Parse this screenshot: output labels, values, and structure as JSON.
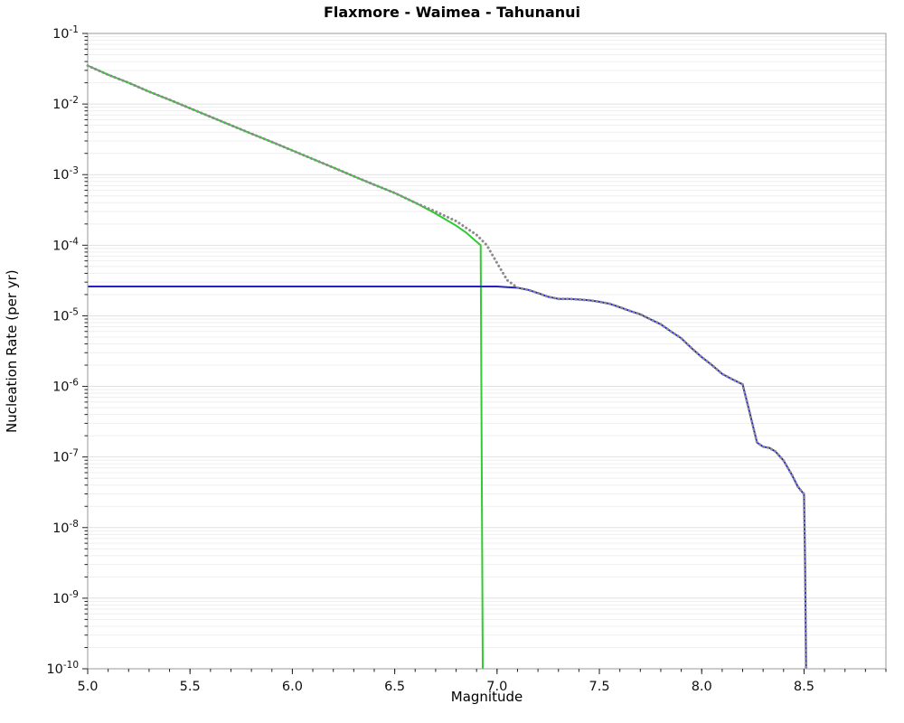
{
  "title": "Flaxmore - Waimea - Tahunanui",
  "chart_data": {
    "type": "line",
    "title": "Flaxmore - Waimea - Tahunanui",
    "xlabel": "Magnitude",
    "ylabel": "Nucleation Rate (per yr)",
    "xlim": [
      5.0,
      8.9
    ],
    "ylim": [
      1e-10,
      0.1
    ],
    "yscale": "log",
    "grid": "horizontal major and minor log gridlines, light gray",
    "legend": "none",
    "x_ticks": [
      "5.0",
      "5.5",
      "6.0",
      "6.5",
      "7.0",
      "7.5",
      "8.0",
      "8.5"
    ],
    "y_tick_exponents": [
      -1,
      -2,
      -3,
      -4,
      -5,
      -6,
      -7,
      -8,
      -9,
      -10
    ],
    "series": [
      {
        "name": "green-truncated-gr",
        "color": "#2ecc2e",
        "width": 2,
        "dotted": false,
        "points": [
          [
            5.0,
            0.035
          ],
          [
            5.1,
            0.026
          ],
          [
            5.2,
            0.02
          ],
          [
            5.3,
            0.015
          ],
          [
            5.4,
            0.0115
          ],
          [
            5.5,
            0.0087
          ],
          [
            5.6,
            0.0066
          ],
          [
            5.7,
            0.005
          ],
          [
            5.8,
            0.0038
          ],
          [
            5.9,
            0.0029
          ],
          [
            6.0,
            0.0022
          ],
          [
            6.1,
            0.00166
          ],
          [
            6.2,
            0.00126
          ],
          [
            6.3,
            0.00095
          ],
          [
            6.4,
            0.00072
          ],
          [
            6.5,
            0.00055
          ],
          [
            6.6,
            0.0004
          ],
          [
            6.7,
            0.00028
          ],
          [
            6.8,
            0.00019
          ],
          [
            6.85,
            0.00015
          ],
          [
            6.9,
            0.000112
          ],
          [
            6.92,
            0.0001
          ],
          [
            6.93,
            1e-10
          ]
        ]
      },
      {
        "name": "blue-rate-curve",
        "color": "#2222c8",
        "width": 2,
        "dotted": false,
        "points": [
          [
            5.0,
            2.6e-05
          ],
          [
            7.0,
            2.6e-05
          ],
          [
            7.05,
            2.55e-05
          ],
          [
            7.1,
            2.5e-05
          ],
          [
            7.15,
            2.34e-05
          ],
          [
            7.2,
            2.1e-05
          ],
          [
            7.25,
            1.86e-05
          ],
          [
            7.3,
            1.74e-05
          ],
          [
            7.35,
            1.74e-05
          ],
          [
            7.4,
            1.7e-05
          ],
          [
            7.45,
            1.66e-05
          ],
          [
            7.5,
            1.58e-05
          ],
          [
            7.55,
            1.48e-05
          ],
          [
            7.6,
            1.32e-05
          ],
          [
            7.65,
            1.17e-05
          ],
          [
            7.7,
            1.05e-05
          ],
          [
            7.75,
            8.9e-06
          ],
          [
            7.8,
            7.6e-06
          ],
          [
            7.85,
            6e-06
          ],
          [
            7.9,
            4.8e-06
          ],
          [
            7.95,
            3.5e-06
          ],
          [
            8.0,
            2.6e-06
          ],
          [
            8.05,
            2e-06
          ],
          [
            8.1,
            1.5e-06
          ],
          [
            8.15,
            1.26e-06
          ],
          [
            8.2,
            1.07e-06
          ],
          [
            8.22,
            6.3e-07
          ],
          [
            8.25,
            2.8e-07
          ],
          [
            8.27,
            1.6e-07
          ],
          [
            8.3,
            1.4e-07
          ],
          [
            8.33,
            1.35e-07
          ],
          [
            8.36,
            1.2e-07
          ],
          [
            8.4,
            8.9e-08
          ],
          [
            8.44,
            5.6e-08
          ],
          [
            8.47,
            3.8e-08
          ],
          [
            8.49,
            3.2e-08
          ],
          [
            8.5,
            3e-08
          ],
          [
            8.505,
            3e-09
          ],
          [
            8.51,
            1e-10
          ]
        ]
      },
      {
        "name": "gray-dotted-tapered",
        "color": "#8c8c8c",
        "width": 3,
        "dotted": true,
        "points": [
          [
            5.0,
            0.035
          ],
          [
            5.1,
            0.026
          ],
          [
            5.2,
            0.02
          ],
          [
            5.3,
            0.015
          ],
          [
            5.4,
            0.0115
          ],
          [
            5.5,
            0.0087
          ],
          [
            5.6,
            0.0066
          ],
          [
            5.7,
            0.005
          ],
          [
            5.8,
            0.0038
          ],
          [
            5.9,
            0.0029
          ],
          [
            6.0,
            0.0022
          ],
          [
            6.1,
            0.00166
          ],
          [
            6.2,
            0.00126
          ],
          [
            6.3,
            0.00095
          ],
          [
            6.4,
            0.00072
          ],
          [
            6.5,
            0.00055
          ],
          [
            6.6,
            0.0004
          ],
          [
            6.7,
            0.0003
          ],
          [
            6.8,
            0.00022
          ],
          [
            6.9,
            0.00014
          ],
          [
            6.95,
            0.0001
          ],
          [
            7.0,
            5.6e-05
          ],
          [
            7.05,
            3.2e-05
          ],
          [
            7.1,
            2.5e-05
          ],
          [
            7.15,
            2.34e-05
          ],
          [
            7.2,
            2.1e-05
          ],
          [
            7.25,
            1.86e-05
          ],
          [
            7.3,
            1.74e-05
          ],
          [
            7.35,
            1.74e-05
          ],
          [
            7.4,
            1.7e-05
          ],
          [
            7.45,
            1.66e-05
          ],
          [
            7.5,
            1.58e-05
          ],
          [
            7.55,
            1.48e-05
          ],
          [
            7.6,
            1.32e-05
          ],
          [
            7.65,
            1.17e-05
          ],
          [
            7.7,
            1.05e-05
          ],
          [
            7.75,
            8.9e-06
          ],
          [
            7.8,
            7.6e-06
          ],
          [
            7.85,
            6e-06
          ],
          [
            7.9,
            4.8e-06
          ],
          [
            7.95,
            3.5e-06
          ],
          [
            8.0,
            2.6e-06
          ],
          [
            8.05,
            2e-06
          ],
          [
            8.1,
            1.5e-06
          ],
          [
            8.15,
            1.26e-06
          ],
          [
            8.2,
            1.07e-06
          ],
          [
            8.22,
            6.3e-07
          ],
          [
            8.25,
            2.8e-07
          ],
          [
            8.27,
            1.6e-07
          ],
          [
            8.3,
            1.4e-07
          ],
          [
            8.33,
            1.35e-07
          ],
          [
            8.36,
            1.2e-07
          ],
          [
            8.4,
            8.9e-08
          ],
          [
            8.44,
            5.6e-08
          ],
          [
            8.47,
            3.8e-08
          ],
          [
            8.49,
            3.2e-08
          ],
          [
            8.5,
            3e-08
          ],
          [
            8.505,
            3e-09
          ],
          [
            8.51,
            1e-10
          ]
        ]
      }
    ]
  }
}
